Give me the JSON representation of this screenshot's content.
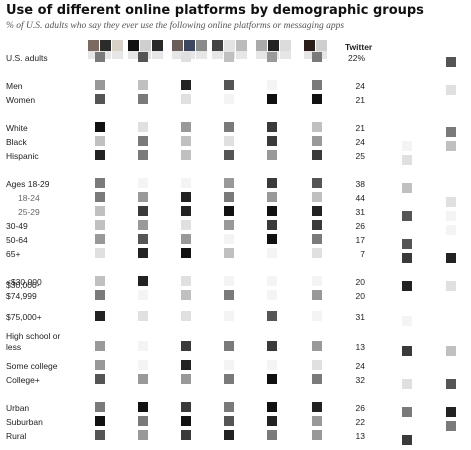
{
  "title": "Use of different online platforms by demographic groups",
  "subtitle": "% of U.S. adults who say they ever use the following online platforms or messaging apps",
  "column_header": "Twitter",
  "colors": {
    "ink": "#222222",
    "sub_ink": "#666666"
  },
  "chart_data": {
    "type": "table",
    "series": [
      {
        "name": "Twitter",
        "values": [
          22,
          24,
          21,
          21,
          24,
          25,
          38,
          44,
          31,
          26,
          17,
          7,
          20,
          20,
          31,
          13,
          24,
          32,
          26,
          22,
          13
        ]
      }
    ],
    "rows": [
      {
        "label": "U.S. adults",
        "value": "22%",
        "sub": false
      },
      {
        "label": "Men",
        "value": "24",
        "sub": false
      },
      {
        "label": "Women",
        "value": "21",
        "sub": false
      },
      {
        "label": "White",
        "value": "21",
        "sub": false
      },
      {
        "label": "Black",
        "value": "24",
        "sub": false
      },
      {
        "label": "Hispanic",
        "value": "25",
        "sub": false
      },
      {
        "label": "Ages 18-29",
        "value": "38",
        "sub": false
      },
      {
        "label": "18-24",
        "value": "44",
        "sub": true
      },
      {
        "label": "25-29",
        "value": "31",
        "sub": true
      },
      {
        "label": "30-49",
        "value": "26",
        "sub": false
      },
      {
        "label": "50-64",
        "value": "17",
        "sub": false
      },
      {
        "label": "65+",
        "value": "7",
        "sub": false
      },
      {
        "label": "<$30,000",
        "value": "20",
        "sub": false
      },
      {
        "label": [
          "$30,000-",
          "$74,999"
        ],
        "value": "20",
        "sub": false
      },
      {
        "label": "$75,000+",
        "value": "31",
        "sub": false
      },
      {
        "label": [
          "High school or",
          "less"
        ],
        "value": "13",
        "sub": false
      },
      {
        "label": "Some college",
        "value": "24",
        "sub": false
      },
      {
        "label": "College+",
        "value": "32",
        "sub": false
      },
      {
        "label": "Urban",
        "value": "26",
        "sub": false
      },
      {
        "label": "Suburban",
        "value": "22",
        "sub": false
      },
      {
        "label": "Rural",
        "value": "13",
        "sub": false
      }
    ]
  }
}
